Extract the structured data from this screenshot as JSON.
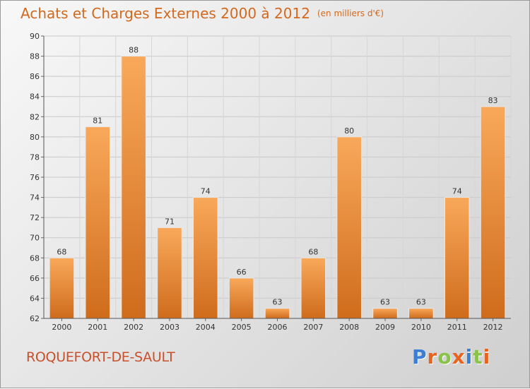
{
  "title": "Achats et Charges Externes 2000 à 2012",
  "unit": "(en milliers d'€)",
  "town": "ROQUEFORT-DE-SAULT",
  "logo": {
    "letters": [
      "P",
      "r",
      "o",
      "x",
      "i",
      "t",
      "i"
    ],
    "colors": [
      "#3a7fd5",
      "#e8641e",
      "#8bc34a",
      "#e8641e",
      "#3a7fd5",
      "#8bc34a",
      "#e8641e"
    ]
  },
  "chart_data": {
    "type": "bar",
    "title": "Achats et Charges Externes 2000 à 2012",
    "subtitle": "(en milliers d'€)",
    "categories": [
      "2000",
      "2001",
      "2002",
      "2003",
      "2004",
      "2005",
      "2006",
      "2007",
      "2008",
      "2009",
      "2010",
      "2011",
      "2012"
    ],
    "values": [
      68,
      81,
      88,
      71,
      74,
      66,
      63,
      68,
      80,
      63,
      63,
      74,
      83
    ],
    "ylim": [
      62,
      90
    ],
    "yticks": [
      "62",
      "64",
      "66",
      "68",
      "70",
      "72",
      "74",
      "76",
      "78",
      "80",
      "82",
      "84",
      "86",
      "88",
      "90"
    ],
    "grid": true,
    "legend": "none",
    "bar_color": "#f0913a"
  }
}
